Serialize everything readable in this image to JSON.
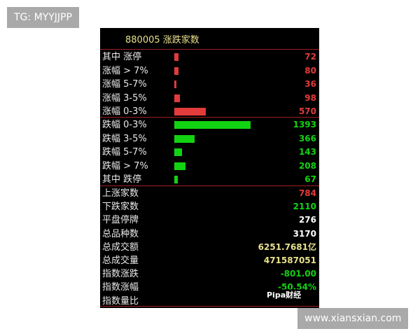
{
  "tag": "TG: MYYJJPP",
  "panel": {
    "title": "880005 涨跌家数",
    "up": {
      "color": "#e23b3b",
      "rows": [
        {
          "label": "其中 涨停",
          "value": 72
        },
        {
          "label": "涨幅 > 7%",
          "value": 80
        },
        {
          "label": "涨幅 5-7%",
          "value": 36
        },
        {
          "label": "涨幅 3-5%",
          "value": 98
        },
        {
          "label": "涨幅 0-3%",
          "value": 570
        }
      ]
    },
    "down": {
      "color": "#12d312",
      "rows": [
        {
          "label": "跌幅 0-3%",
          "value": 1393
        },
        {
          "label": "跌幅 3-5%",
          "value": 366
        },
        {
          "label": "跌幅 5-7%",
          "value": 143
        },
        {
          "label": "跌幅 > 7%",
          "value": 208
        },
        {
          "label": "其中 跌停",
          "value": 67
        }
      ]
    },
    "stats": [
      {
        "label": "上涨家数",
        "value": "784",
        "color": "#e23b3b"
      },
      {
        "label": "下跌家数",
        "value": "2110",
        "color": "#12d312"
      },
      {
        "label": "平盘停牌",
        "value": "276",
        "color": "#ffffff"
      },
      {
        "label": "总品种数",
        "value": "3170",
        "color": "#ffffff"
      },
      {
        "label": "总成交额",
        "value": "6251.7681亿",
        "color": "#e8e08c"
      },
      {
        "label": "总成交量",
        "value": "471587051",
        "color": "#e8e08c"
      },
      {
        "label": "指数涨跌",
        "value": "-801.00",
        "color": "#12d312"
      },
      {
        "label": "指数涨幅",
        "value": "-50.54%",
        "color": "#12d312"
      },
      {
        "label": "指数量比"
      }
    ]
  },
  "watermark": "Pipa财经",
  "site": "www.xiansxian.com"
}
